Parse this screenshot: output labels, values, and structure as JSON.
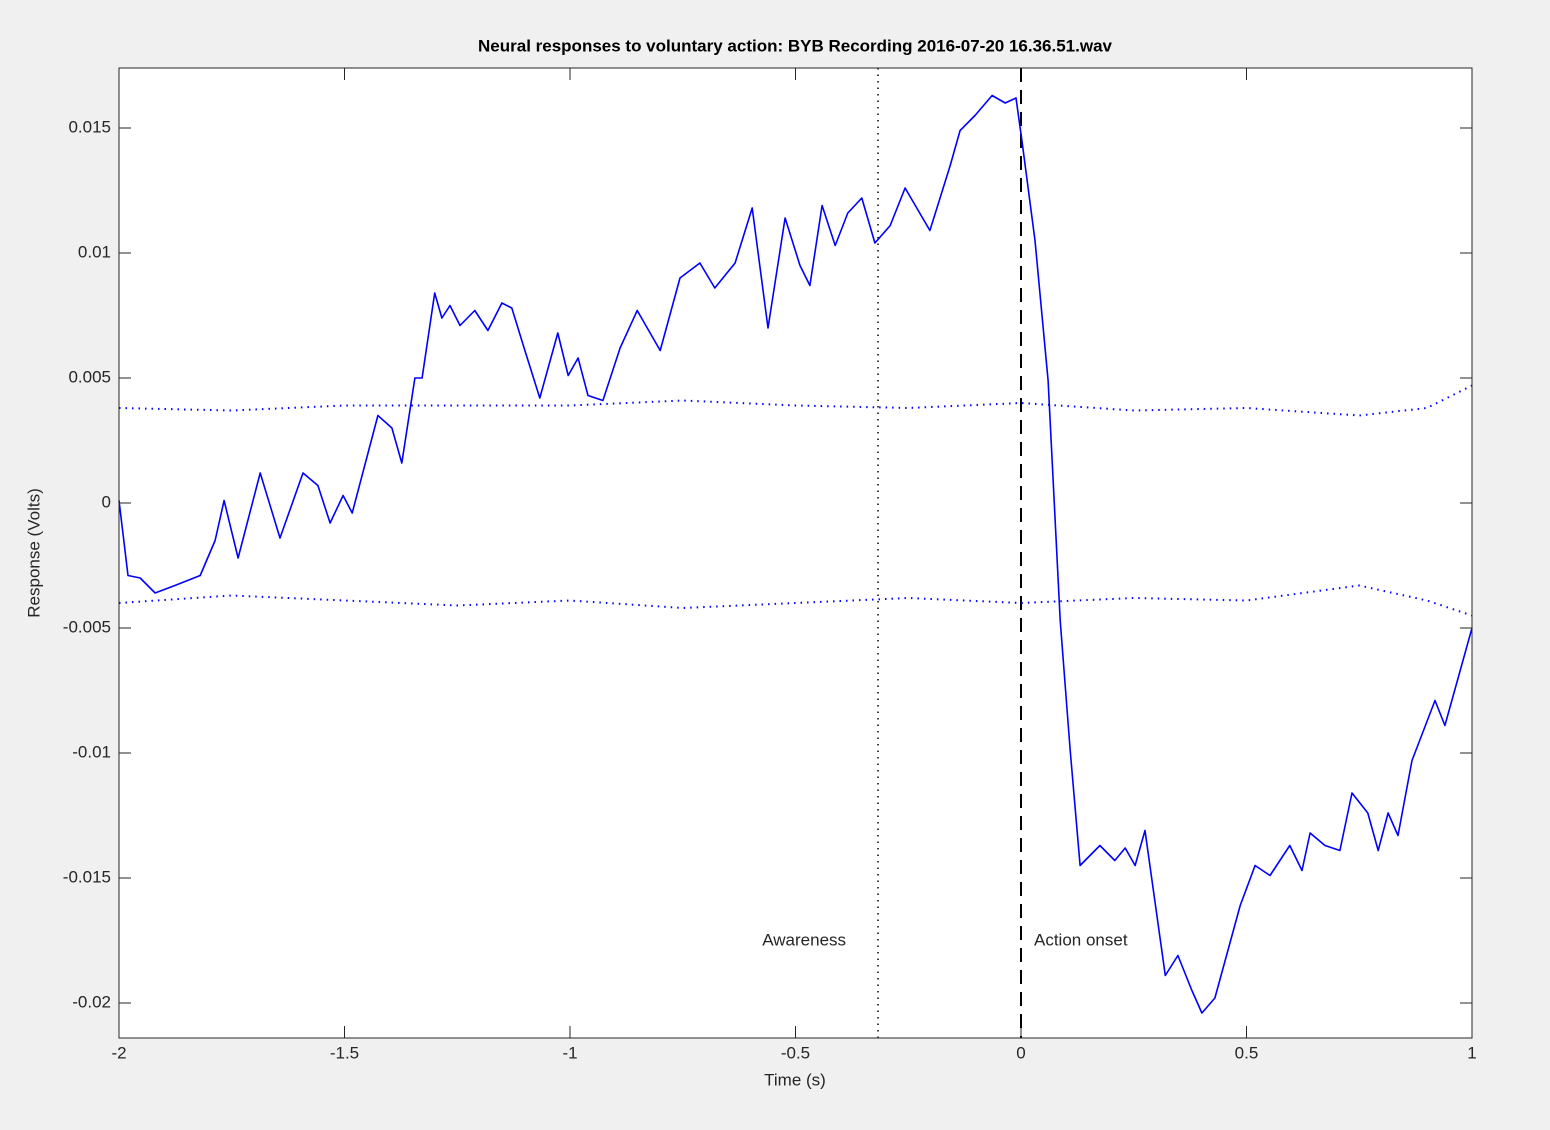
{
  "chart_data": {
    "type": "line",
    "title": "Neural responses to voluntary action: BYB Recording 2016-07-20 16.36.51.wav",
    "xlabel": "Time (s)",
    "ylabel": "Response (Volts)",
    "xlim": [
      -2,
      1
    ],
    "ylim": [
      -0.0214,
      0.0174
    ],
    "xticks": [
      -2,
      -1.5,
      -1,
      -0.5,
      0,
      0.5,
      1
    ],
    "yticks": [
      -0.02,
      -0.015,
      -0.01,
      -0.005,
      0,
      0.005,
      0.01,
      0.015
    ],
    "series": [
      {
        "color": "#0000ff",
        "style": "solid",
        "x": [
          -2,
          -1.98,
          -1.953,
          -1.92,
          -1.876,
          -1.82,
          -1.787,
          -1.767,
          -1.736,
          -1.687,
          -1.643,
          -1.592,
          -1.559,
          -1.532,
          -1.503,
          -1.483,
          -1.426,
          -1.395,
          -1.373,
          -1.344,
          -1.328,
          -1.3,
          -1.284,
          -1.266,
          -1.244,
          -1.211,
          -1.182,
          -1.151,
          -1.129,
          -1.1,
          -1.067,
          -1.027,
          -1.004,
          -0.982,
          -0.96,
          -0.927,
          -0.889,
          -0.851,
          -0.8,
          -0.756,
          -0.712,
          -0.679,
          -0.634,
          -0.596,
          -0.561,
          -0.523,
          -0.49,
          -0.468,
          -0.441,
          -0.412,
          -0.384,
          -0.353,
          -0.324,
          -0.29,
          -0.257,
          -0.202,
          -0.157,
          -0.135,
          -0.102,
          -0.064,
          -0.035,
          -0.011,
          0.002,
          0.031,
          0.06,
          0.087,
          0.109,
          0.131,
          0.175,
          0.208,
          0.231,
          0.253,
          0.275,
          0.32,
          0.348,
          0.379,
          0.401,
          0.43,
          0.486,
          0.519,
          0.552,
          0.596,
          0.623,
          0.641,
          0.674,
          0.707,
          0.734,
          0.769,
          0.792,
          0.814,
          0.836,
          0.867,
          0.918,
          0.94,
          1
        ],
        "values": [
          0.0001,
          -0.0029,
          -0.003,
          -0.0036,
          -0.0033,
          -0.0029,
          -0.0015,
          0.0001,
          -0.0022,
          0.0012,
          -0.0014,
          0.0012,
          0.0007,
          -0.0008,
          0.0003,
          -0.0004,
          0.0035,
          0.003,
          0.0016,
          0.005,
          0.005,
          0.0084,
          0.0074,
          0.0079,
          0.0071,
          0.0077,
          0.0069,
          0.008,
          0.0078,
          0.0061,
          0.0042,
          0.0068,
          0.0051,
          0.0058,
          0.0043,
          0.0041,
          0.0062,
          0.0077,
          0.0061,
          0.009,
          0.0096,
          0.0086,
          0.0096,
          0.0118,
          0.007,
          0.0114,
          0.0095,
          0.0087,
          0.0119,
          0.0103,
          0.0116,
          0.0122,
          0.0104,
          0.0111,
          0.0126,
          0.0109,
          0.0135,
          0.0149,
          0.0155,
          0.0163,
          0.016,
          0.0162,
          0.0145,
          0.0105,
          0.0049,
          -0.0047,
          -0.0099,
          -0.0145,
          -0.0137,
          -0.0143,
          -0.0138,
          -0.0145,
          -0.0131,
          -0.0189,
          -0.0181,
          -0.0195,
          -0.0204,
          -0.0198,
          -0.0161,
          -0.0145,
          -0.0149,
          -0.0137,
          -0.0147,
          -0.0132,
          -0.0137,
          -0.0139,
          -0.0116,
          -0.0124,
          -0.0139,
          -0.0124,
          -0.0133,
          -0.0103,
          -0.0079,
          -0.0089,
          -0.005
        ]
      },
      {
        "color": "#0000ff",
        "style": "dotted",
        "x": [
          -2,
          -1.75,
          -1.5,
          -1.25,
          -1,
          -0.75,
          -0.5,
          -0.25,
          0,
          0.25,
          0.5,
          0.75,
          0.9,
          1
        ],
        "values": [
          0.0038,
          0.0037,
          0.0039,
          0.0039,
          0.0039,
          0.0041,
          0.0039,
          0.0038,
          0.004,
          0.0037,
          0.0038,
          0.0035,
          0.0038,
          0.0047
        ]
      },
      {
        "color": "#0000ff",
        "style": "dotted",
        "x": [
          -2,
          -1.75,
          -1.5,
          -1.25,
          -1,
          -0.75,
          -0.5,
          -0.25,
          0,
          0.25,
          0.5,
          0.75,
          0.9,
          1
        ],
        "values": [
          -0.004,
          -0.0037,
          -0.0039,
          -0.0041,
          -0.0039,
          -0.0042,
          -0.004,
          -0.0038,
          -0.004,
          -0.0038,
          -0.0039,
          -0.0033,
          -0.0039,
          -0.0045
        ]
      }
    ],
    "annotations": [
      {
        "x": -0.317,
        "label": "Awareness",
        "style": "dotted"
      },
      {
        "x": 0,
        "label": "Action onset",
        "style": "dashed"
      }
    ]
  }
}
